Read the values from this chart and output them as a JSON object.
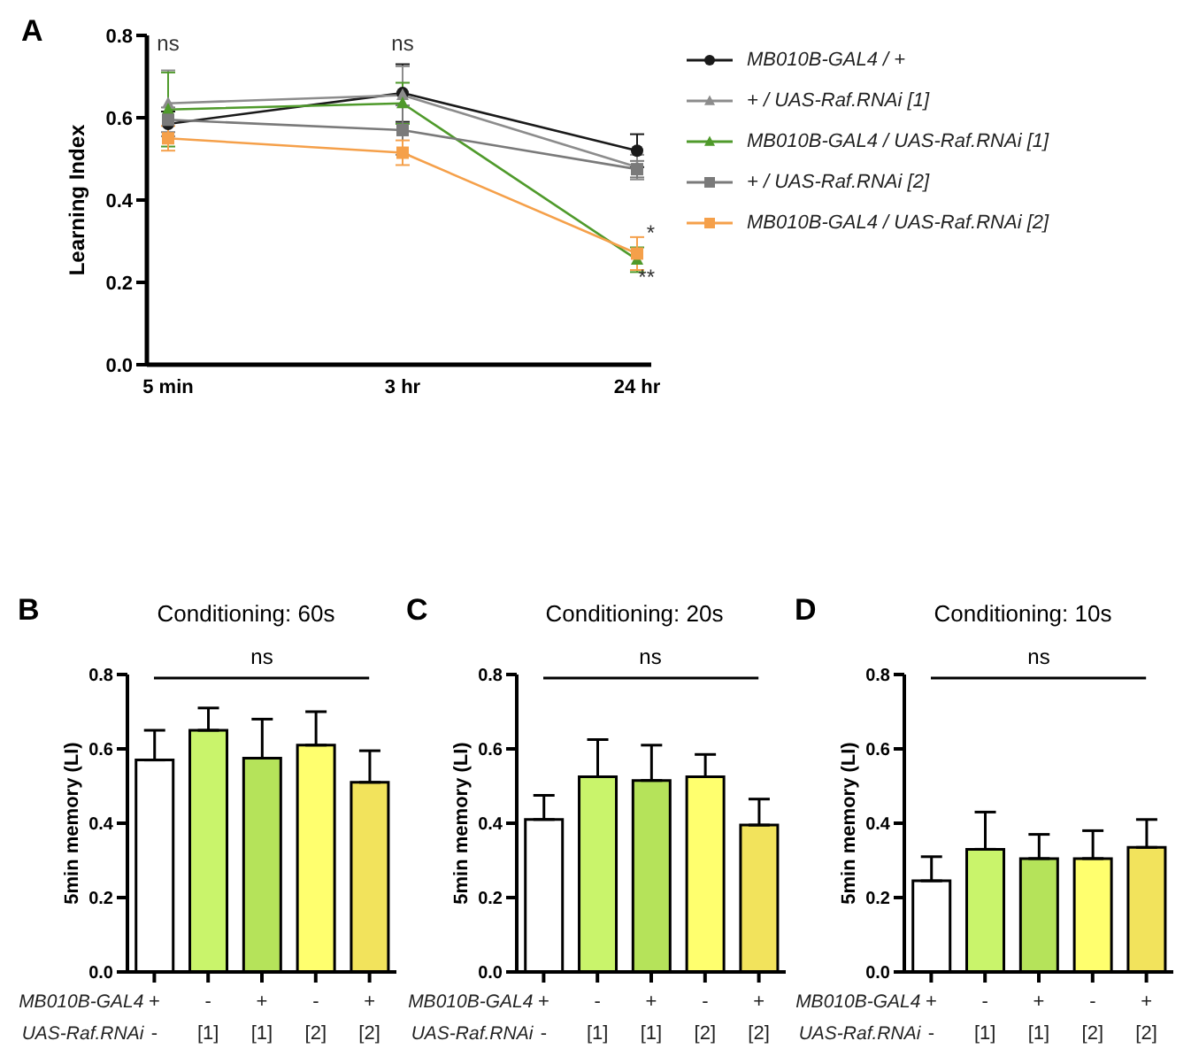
{
  "chart_data": [
    {
      "type": "line",
      "categories": [
        "5 min",
        "3 hr",
        "24 hr"
      ],
      "ylabel": "Learning Index",
      "ylim": [
        0,
        0.8
      ],
      "yticks": [
        {
          "value": 0,
          "label": "0.0"
        },
        {
          "value": 0.2,
          "label": "0.2"
        },
        {
          "value": 0.4,
          "label": "0.4"
        },
        {
          "value": 0.6,
          "label": "0.6"
        },
        {
          "value": 0.8,
          "label": "0.8"
        }
      ],
      "legend": "right",
      "annotations": [
        "A",
        "ns",
        "ns",
        {
          "text": "*",
          "x": "24 hr",
          "y": 0.27
        },
        {
          "text": "**",
          "x": "24 hr",
          "y": 0.255
        }
      ],
      "series": [
        {
          "name": "MB010B-GAL4 / +",
          "color": "#1a1a1a",
          "marker": "circle",
          "values": [
            0.585,
            0.66,
            0.52
          ],
          "errors": [
            0.03,
            0.07,
            0.04
          ]
        },
        {
          "name": "+ / UAS-Raf.RNAi [1]",
          "color": "#8c8c8c",
          "marker": "triangle",
          "values": [
            0.635,
            0.655,
            0.48
          ],
          "errors": [
            0.08,
            0.07,
            0.03
          ]
        },
        {
          "name": "MB010B-GAL4 / UAS-Raf.RNAi [1]",
          "color": "#4f9a2b",
          "marker": "triangle",
          "values": [
            0.62,
            0.635,
            0.255
          ],
          "errors": [
            0.09,
            0.05,
            0.03
          ]
        },
        {
          "name": "+ / UAS-Raf.RNAi [2]",
          "color": "#7a7a7a",
          "marker": "square",
          "values": [
            0.595,
            0.57,
            0.475
          ],
          "errors": [
            0.03,
            0.06,
            0.02
          ]
        },
        {
          "name": "MB010B-GAL4 / UAS-Raf.RNAi [2]",
          "color": "#f5a04a",
          "marker": "square",
          "values": [
            0.55,
            0.515,
            0.27
          ],
          "errors": [
            0.03,
            0.03,
            0.04
          ]
        }
      ]
    },
    {
      "type": "bar",
      "title": "Conditioning: 60s",
      "categories": [
        "+\n-",
        "-\n[1]",
        "+\n[1]",
        "-\n[2]",
        "+\n[2]"
      ],
      "ylabel": "5min memory (LI)",
      "ylim": [
        0,
        0.8
      ],
      "yticks": [
        {
          "value": 0,
          "label": "0.0"
        },
        {
          "value": 0.2,
          "label": "0.2"
        },
        {
          "value": 0.4,
          "label": "0.4"
        },
        {
          "value": 0.6,
          "label": "0.6"
        },
        {
          "value": 0.8,
          "label": "0.8"
        }
      ],
      "values": [
        0.57,
        0.65,
        0.575,
        0.61,
        0.51
      ],
      "errors": [
        0.08,
        0.06,
        0.105,
        0.09,
        0.085
      ],
      "colors": [
        "#ffffff",
        "#c9f46b",
        "#b5e35a",
        "#ffff6e",
        "#f2e35c"
      ],
      "annotations": [
        "B",
        "ns",
        "MB010B-GAL4",
        "UAS-Raf.RNAi"
      ]
    },
    {
      "type": "bar",
      "title": "Conditioning: 20s",
      "categories": [
        "+\n-",
        "-\n[1]",
        "+\n[1]",
        "-\n[2]",
        "+\n[2]"
      ],
      "ylabel": "5min memory (LI)",
      "ylim": [
        0,
        0.8
      ],
      "yticks": [
        {
          "value": 0,
          "label": "0.0"
        },
        {
          "value": 0.2,
          "label": "0.2"
        },
        {
          "value": 0.4,
          "label": "0.4"
        },
        {
          "value": 0.6,
          "label": "0.6"
        },
        {
          "value": 0.8,
          "label": "0.8"
        }
      ],
      "values": [
        0.41,
        0.525,
        0.515,
        0.525,
        0.395
      ],
      "errors": [
        0.065,
        0.1,
        0.095,
        0.06,
        0.07
      ],
      "colors": [
        "#ffffff",
        "#c9f46b",
        "#b5e35a",
        "#ffff6e",
        "#f2e35c"
      ],
      "annotations": [
        "C",
        "ns",
        "MB010B-GAL4",
        "UAS-Raf.RNAi"
      ]
    },
    {
      "type": "bar",
      "title": "Conditioning: 10s",
      "categories": [
        "+\n-",
        "-\n[1]",
        "+\n[1]",
        "-\n[2]",
        "+\n[2]"
      ],
      "ylabel": "5min memory (LI)",
      "ylim": [
        0,
        0.8
      ],
      "yticks": [
        {
          "value": 0,
          "label": "0.0"
        },
        {
          "value": 0.2,
          "label": "0.2"
        },
        {
          "value": 0.4,
          "label": "0.4"
        },
        {
          "value": 0.6,
          "label": "0.6"
        },
        {
          "value": 0.8,
          "label": "0.8"
        }
      ],
      "values": [
        0.245,
        0.33,
        0.305,
        0.305,
        0.335
      ],
      "errors": [
        0.065,
        0.1,
        0.065,
        0.075,
        0.075
      ],
      "colors": [
        "#ffffff",
        "#c9f46b",
        "#b5e35a",
        "#ffff6e",
        "#f2e35c"
      ],
      "annotations": [
        "D",
        "ns",
        "MB010B-GAL4",
        "UAS-Raf.RNAi"
      ]
    }
  ]
}
